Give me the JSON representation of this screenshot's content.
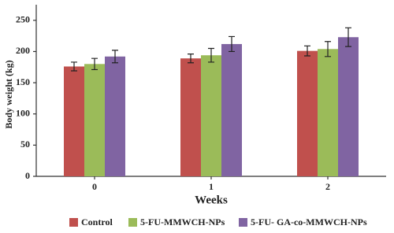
{
  "chart_data": {
    "type": "bar",
    "x_label": "Weeks",
    "y_label": "Body weight (kg)",
    "categories": [
      "0",
      "1",
      "2"
    ],
    "series": [
      {
        "name": "Control",
        "color": "#c0504d",
        "values": [
          176,
          189,
          201
        ],
        "errors": [
          7,
          7,
          8
        ]
      },
      {
        "name": "5-FU-MMWCH-NPs",
        "color": "#9bbb59",
        "values": [
          180,
          194,
          204
        ],
        "errors": [
          9,
          11,
          12
        ]
      },
      {
        "name": "5-FU- GA-co-MMWCH-NPs",
        "color": "#8064a2",
        "values": [
          192,
          212,
          223
        ],
        "errors": [
          10,
          12,
          15
        ]
      }
    ],
    "ylim": [
      0,
      275
    ],
    "yticks": [
      0,
      50,
      100,
      150,
      200,
      250
    ],
    "grid": false,
    "legend": "bottom"
  }
}
